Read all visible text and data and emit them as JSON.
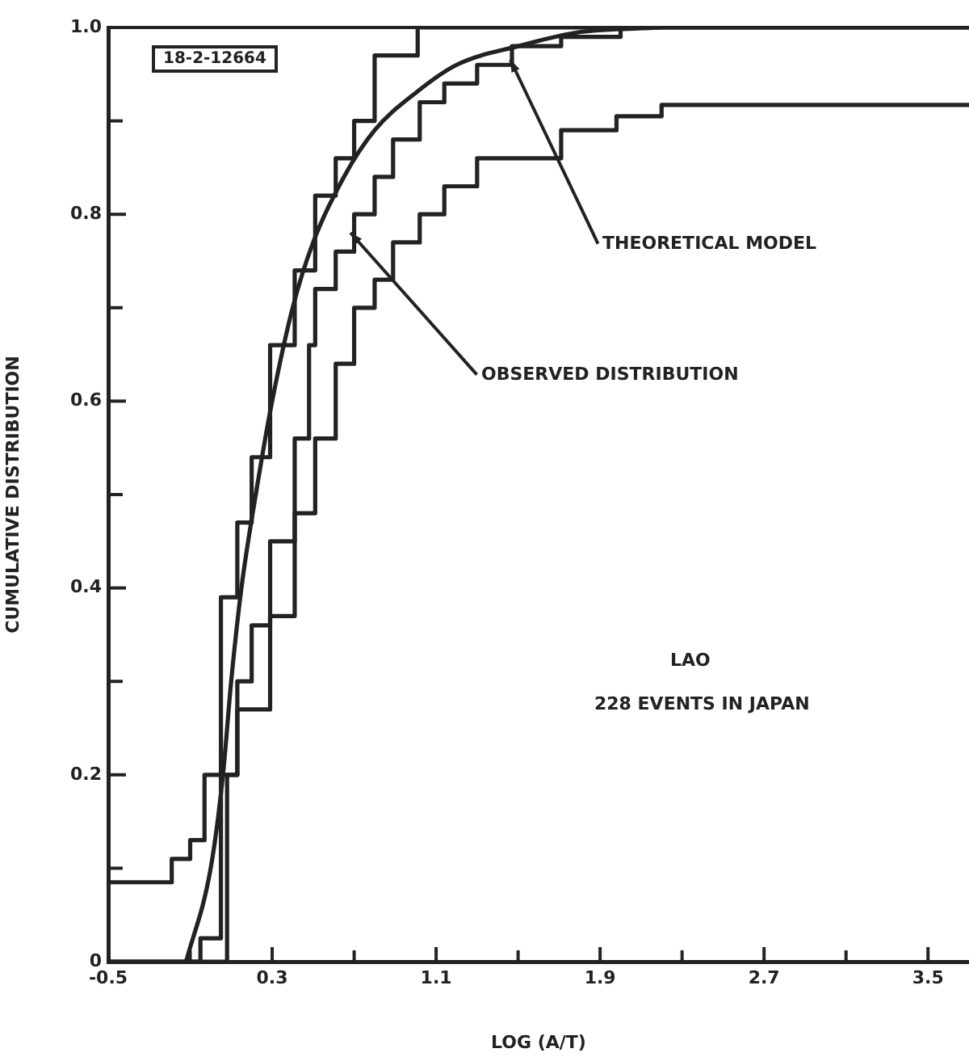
{
  "chart_data": {
    "type": "line",
    "xlabel": "LOG (A/T)",
    "ylabel": "CUMULATIVE DISTRIBUTION",
    "annotations": [
      "18-2-12664",
      {
        "text": "THEORETICAL MODEL",
        "x": 1.46,
        "y": 0.965
      },
      {
        "text": "OBSERVED DISTRIBUTION",
        "x": 0.68,
        "y": 0.78
      },
      "LAO",
      "228 EVENTS IN JAPAN"
    ],
    "xlim": [
      -0.5,
      3.7
    ],
    "ylim": [
      0,
      1
    ],
    "xticks": [
      {
        "value": -0.5,
        "label": "-0.5"
      },
      {
        "value": -0.1,
        "label": null
      },
      0.3,
      {
        "value": 0.7,
        "label": null
      },
      1.1,
      {
        "value": 1.5,
        "label": null
      },
      1.9,
      {
        "value": 2.3,
        "label": null
      },
      2.7,
      {
        "value": 3.1,
        "label": null
      },
      3.5
    ],
    "yticks": [
      0,
      {
        "value": 0.1,
        "label": null
      },
      0.2,
      {
        "value": 0.3,
        "label": null
      },
      0.4,
      {
        "value": 0.5,
        "label": null
      },
      0.6,
      {
        "value": 0.7,
        "label": null
      },
      0.8,
      {
        "value": 0.9,
        "label": null
      },
      {
        "value": 1,
        "label": "1.0"
      }
    ],
    "grid": false,
    "legend": false,
    "marker": "none",
    "line_style": "solid",
    "series": [
      {
        "type": "step",
        "color": "#222222",
        "x": [
          -0.5,
          -0.05,
          0.05,
          0.13,
          0.2,
          0.29,
          0.41,
          0.51,
          0.61,
          0.7,
          0.8,
          1.01,
          3.7
        ],
        "values": [
          0,
          0.025,
          0.39,
          0.47,
          0.54,
          0.66,
          0.74,
          0.82,
          0.86,
          0.9,
          0.97,
          1,
          1
        ]
      },
      {
        "type": "step",
        "color": "#222222",
        "x": [
          -0.5,
          0.08,
          0.13,
          0.2,
          0.29,
          0.41,
          0.48,
          0.51,
          0.61,
          0.7,
          0.8,
          0.89,
          1.02,
          1.14,
          1.3,
          1.47,
          1.71,
          2,
          3.7
        ],
        "values": [
          0,
          0.2,
          0.3,
          0.36,
          0.45,
          0.56,
          0.66,
          0.72,
          0.76,
          0.8,
          0.84,
          0.88,
          0.92,
          0.94,
          0.96,
          0.98,
          0.99,
          1,
          1
        ]
      },
      {
        "type": "step",
        "color": "#222222",
        "x": [
          -0.5,
          -0.19,
          -0.1,
          -0.03,
          0.13,
          0.29,
          0.41,
          0.51,
          0.61,
          0.7,
          0.8,
          0.89,
          1.02,
          1.14,
          1.3,
          1.71,
          1.98,
          2.2,
          3.7
        ],
        "values": [
          0.085,
          0.11,
          0.13,
          0.2,
          0.27,
          0.37,
          0.48,
          0.56,
          0.64,
          0.7,
          0.73,
          0.77,
          0.8,
          0.83,
          0.86,
          0.89,
          0.905,
          0.917,
          0.917
        ]
      },
      {
        "type": "line",
        "color": "#222222",
        "x": [
          -0.12,
          0,
          0.06,
          0.1,
          0.15,
          0.22,
          0.3,
          0.4,
          0.5,
          0.65,
          0.8,
          1,
          1.2,
          1.5,
          1.8,
          2.2
        ],
        "values": [
          0,
          0.1,
          0.2,
          0.3,
          0.4,
          0.5,
          0.6,
          0.7,
          0.77,
          0.84,
          0.89,
          0.93,
          0.96,
          0.98,
          0.995,
          1
        ]
      }
    ]
  }
}
